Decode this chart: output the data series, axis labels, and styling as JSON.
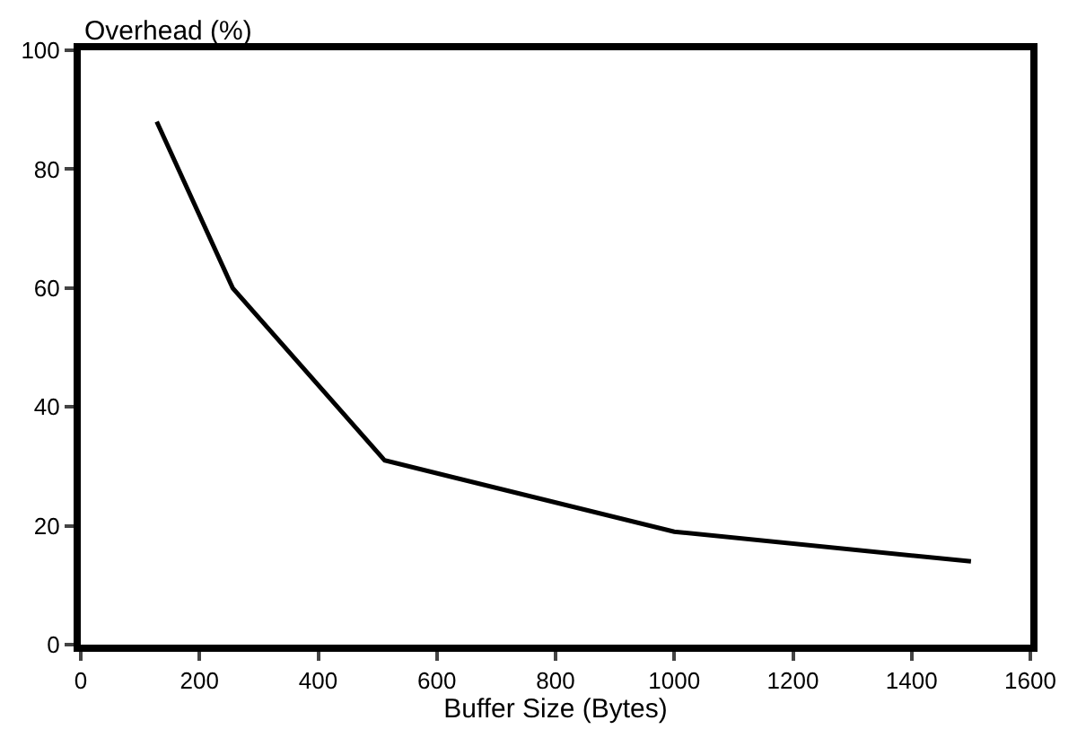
{
  "chart_data": {
    "type": "line",
    "xlabel": "Buffer Size (Bytes)",
    "ylabel": "Overhead (%)",
    "x": [
      128,
      256,
      512,
      1000,
      1500
    ],
    "series": [
      {
        "color": "#000000",
        "values": [
          88,
          60,
          31,
          19,
          14
        ]
      }
    ],
    "xlim": [
      0,
      1600
    ],
    "xticks": [
      0,
      200,
      400,
      600,
      800,
      1000,
      1200,
      1400,
      1600
    ],
    "ylim": [
      0,
      100
    ],
    "yticks": [
      0,
      20,
      40,
      60,
      80,
      100
    ],
    "legend": false,
    "marker": "none",
    "line_style": "solid"
  }
}
